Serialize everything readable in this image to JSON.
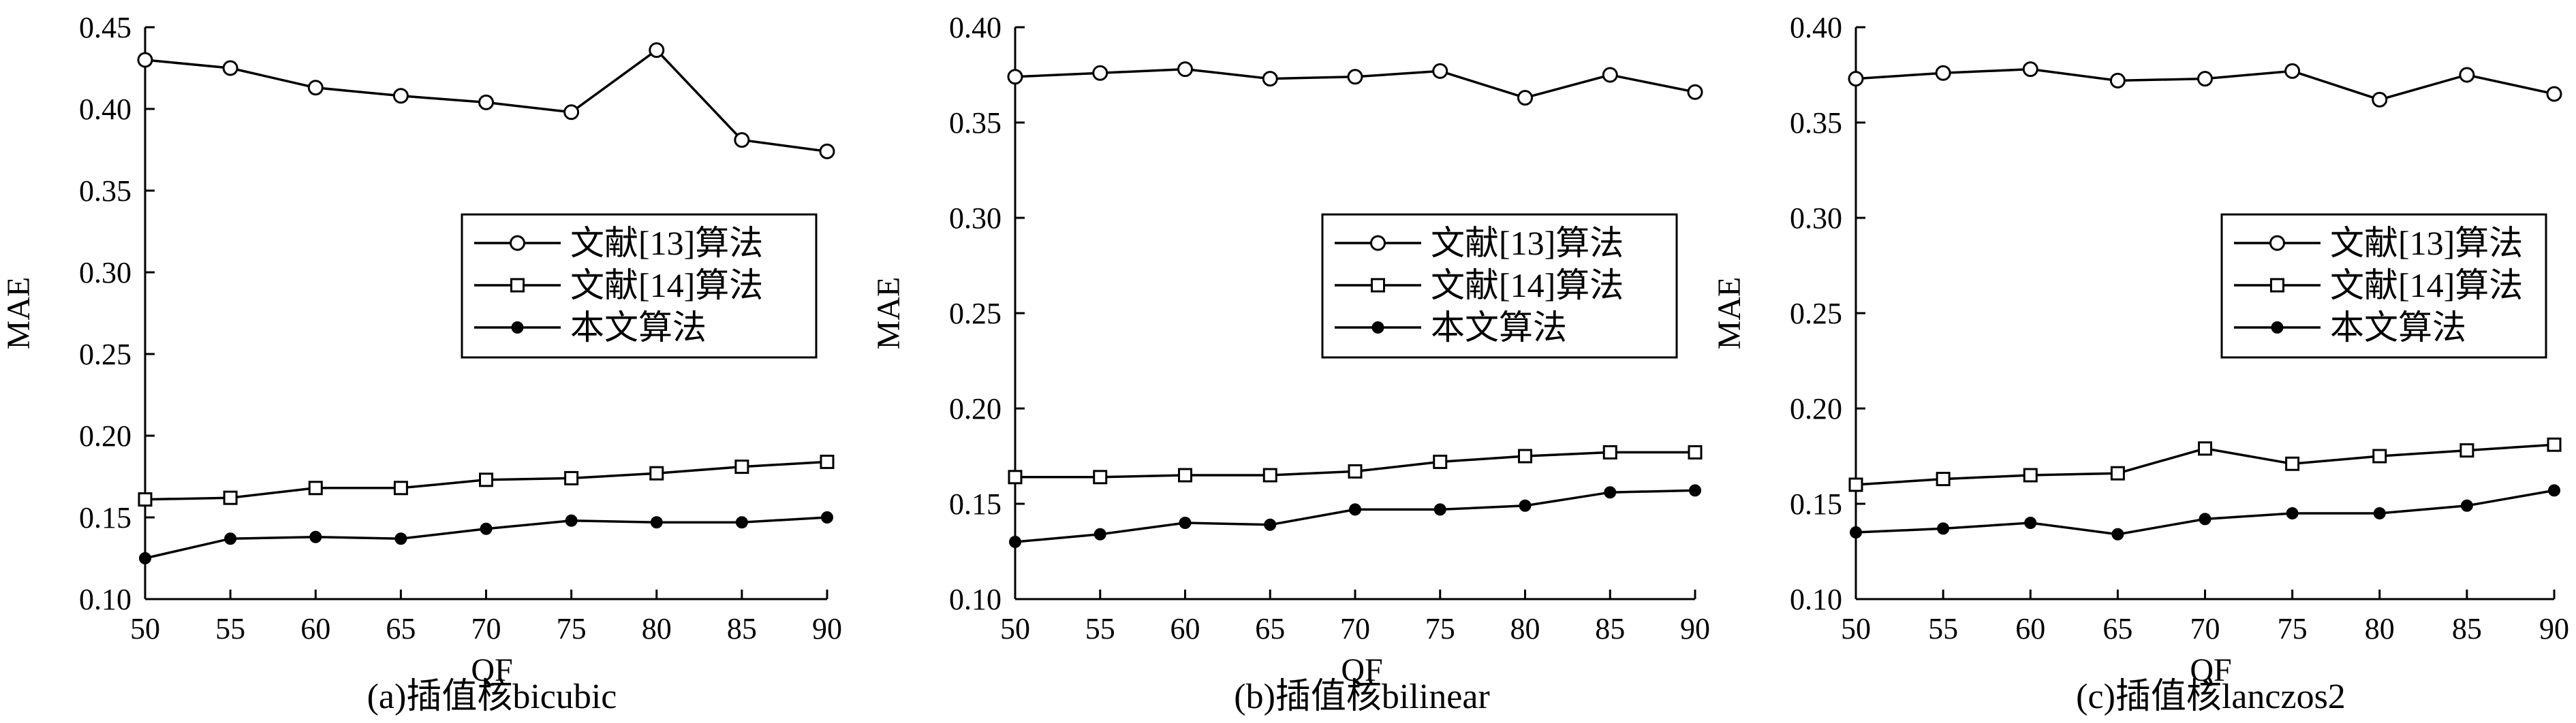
{
  "chart_data": [
    {
      "type": "line",
      "caption": "(a)插值核bicubic",
      "xlabel": "QF",
      "ylabel": "MAE",
      "x": [
        50,
        55,
        60,
        65,
        70,
        75,
        80,
        85,
        90
      ],
      "xticks": [
        "50",
        "55",
        "60",
        "65",
        "70",
        "75",
        "80",
        "85",
        "90"
      ],
      "ylim": [
        0.1,
        0.45
      ],
      "yticks": [
        "0.10",
        "0.15",
        "0.20",
        "0.25",
        "0.30",
        "0.35",
        "0.40",
        "0.45"
      ],
      "legend_position": "right",
      "series": [
        {
          "name": "文献[13]算法",
          "marker": "circle",
          "values": [
            0.43,
            0.425,
            0.413,
            0.408,
            0.404,
            0.398,
            0.436,
            0.381,
            0.374
          ]
        },
        {
          "name": "文献[14]算法",
          "marker": "square",
          "values": [
            0.161,
            0.162,
            0.168,
            0.168,
            0.173,
            0.174,
            0.177,
            0.181,
            0.184
          ]
        },
        {
          "name": "本文算法",
          "marker": "dot",
          "values": [
            0.125,
            0.137,
            0.138,
            0.137,
            0.143,
            0.148,
            0.147,
            0.147,
            0.15
          ]
        }
      ]
    },
    {
      "type": "line",
      "caption": "(b)插值核bilinear",
      "xlabel": "QF",
      "ylabel": "MAE",
      "x": [
        50,
        55,
        60,
        65,
        70,
        75,
        80,
        85,
        90
      ],
      "xticks": [
        "50",
        "55",
        "60",
        "65",
        "70",
        "75",
        "80",
        "85",
        "90"
      ],
      "ylim": [
        0.1,
        0.4
      ],
      "yticks": [
        "0.10",
        "0.15",
        "0.20",
        "0.25",
        "0.30",
        "0.35",
        "0.40"
      ],
      "legend_position": "right",
      "series": [
        {
          "name": "文献[13]算法",
          "marker": "circle",
          "values": [
            0.374,
            0.376,
            0.378,
            0.373,
            0.374,
            0.377,
            0.363,
            0.375,
            0.366
          ]
        },
        {
          "name": "文献[14]算法",
          "marker": "square",
          "values": [
            0.164,
            0.164,
            0.165,
            0.165,
            0.167,
            0.172,
            0.175,
            0.177,
            0.177
          ]
        },
        {
          "name": "本文算法",
          "marker": "dot",
          "values": [
            0.13,
            0.134,
            0.14,
            0.139,
            0.147,
            0.147,
            0.149,
            0.156,
            0.157
          ]
        }
      ]
    },
    {
      "type": "line",
      "caption": "(c)插值核lanczos2",
      "xlabel": "QF",
      "ylabel": "MAE",
      "x": [
        50,
        55,
        60,
        65,
        70,
        75,
        80,
        85,
        90
      ],
      "xticks": [
        "50",
        "55",
        "60",
        "65",
        "70",
        "75",
        "80",
        "85",
        "90"
      ],
      "ylim": [
        0.1,
        0.4
      ],
      "yticks": [
        "0.10",
        "0.15",
        "0.20",
        "0.25",
        "0.30",
        "0.35",
        "0.40"
      ],
      "legend_position": "right",
      "series": [
        {
          "name": "文献[13]算法",
          "marker": "circle",
          "values": [
            0.373,
            0.376,
            0.378,
            0.372,
            0.373,
            0.377,
            0.362,
            0.375,
            0.365
          ]
        },
        {
          "name": "文献[14]算法",
          "marker": "square",
          "values": [
            0.16,
            0.163,
            0.165,
            0.166,
            0.179,
            0.171,
            0.175,
            0.178,
            0.181
          ]
        },
        {
          "name": "本文算法",
          "marker": "dot",
          "values": [
            0.135,
            0.137,
            0.14,
            0.134,
            0.142,
            0.145,
            0.145,
            0.149,
            0.157
          ]
        }
      ]
    }
  ]
}
